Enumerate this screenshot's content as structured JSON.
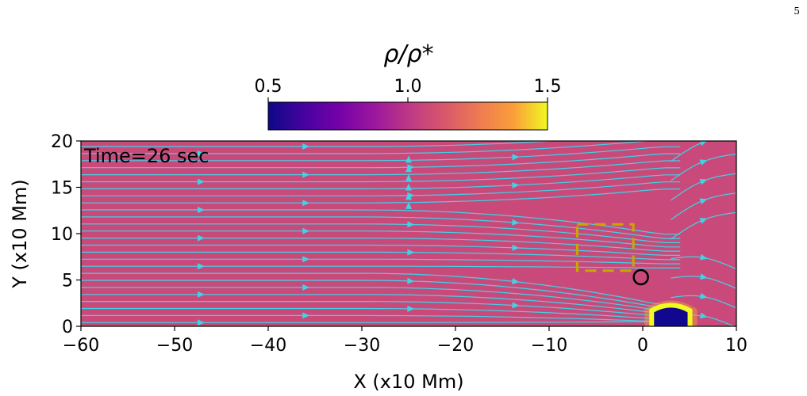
{
  "page": {
    "number": "5"
  },
  "chart_data": {
    "type": "heatmap",
    "annotation": "Time=26 sec",
    "xlabel": "X (x10 Mm)",
    "ylabel": "Y (x10 Mm)",
    "xlim": [
      -60,
      10
    ],
    "ylim": [
      0,
      20
    ],
    "x_ticks": [
      -60,
      -50,
      -40,
      -30,
      -20,
      -10,
      0,
      10
    ],
    "y_ticks": [
      0,
      5,
      10,
      15,
      20
    ],
    "x_tick_labels": [
      "−60",
      "−50",
      "−40",
      "−30",
      "−20",
      "−10",
      "0",
      "10"
    ],
    "y_tick_labels": [
      "0",
      "5",
      "10",
      "15",
      "20"
    ],
    "colorbar": {
      "label": "ρ/ρ*",
      "colormap": "plasma",
      "range": [
        0.5,
        1.5
      ],
      "ticks": [
        0.5,
        1.0,
        1.5
      ],
      "tick_labels": [
        "0.5",
        "1.0",
        "1.5"
      ],
      "placement": "top"
    },
    "background_value": 1.0,
    "streamline_color": "#3fd3e6",
    "dashed_box": {
      "x": [
        -7,
        -1
      ],
      "y": [
        6,
        11
      ],
      "color": "#c8a800"
    },
    "circle_marker": {
      "x": -0.2,
      "y": 5.3
    },
    "dense_region": {
      "x_center": 3,
      "y_top": 2.7,
      "outer_value": 1.5,
      "inner_value": 0.5
    }
  }
}
